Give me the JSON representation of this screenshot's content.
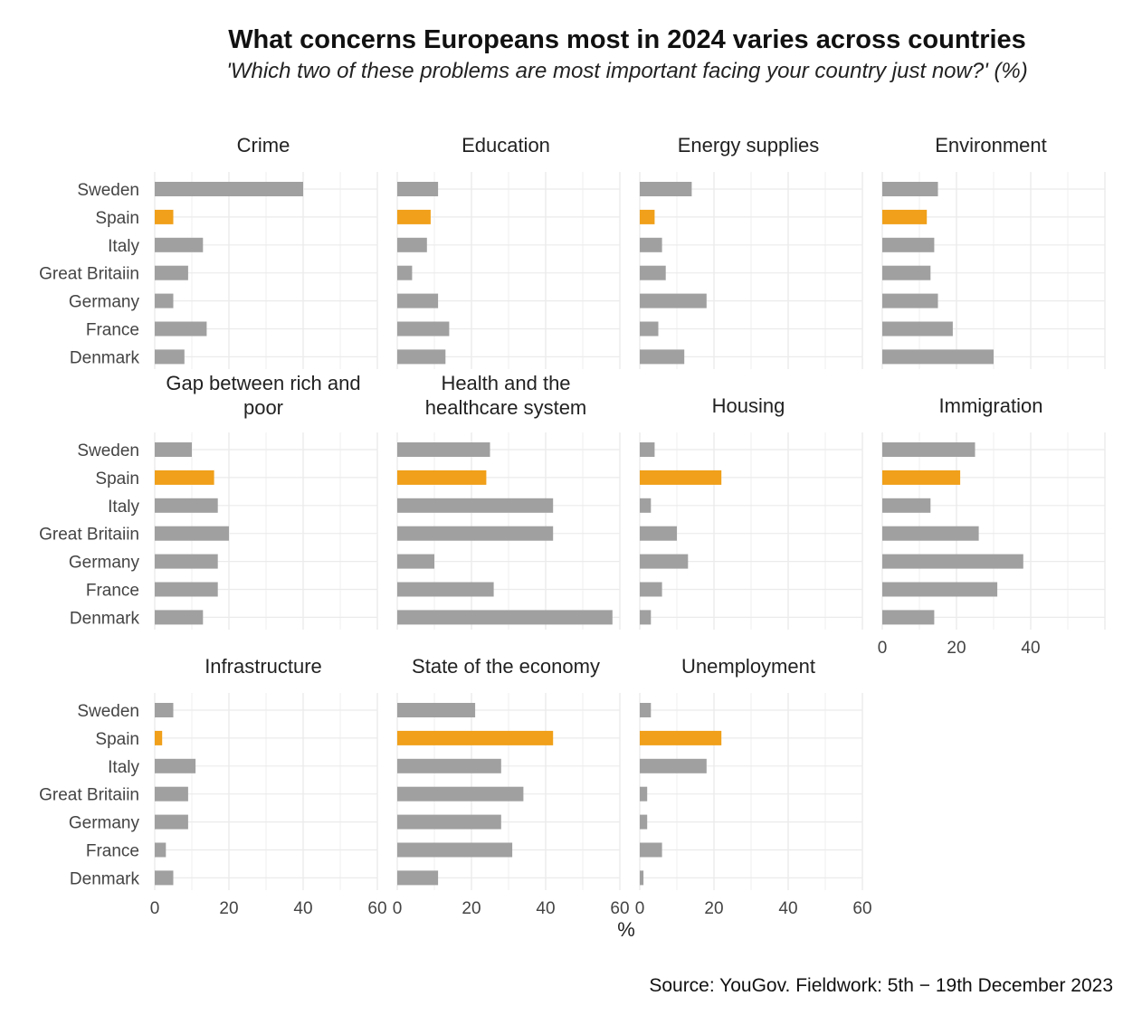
{
  "header": {
    "title": "What concerns Europeans most in 2024 varies across countries",
    "subtitle": "'Which two of these problems are most important facing your country just now?' (%)"
  },
  "footer": {
    "source": "Source: YouGov. Fieldwork: 5th − 19th December 2023"
  },
  "colors": {
    "highlight": "#f0a01a",
    "bar": "#a0a0a0",
    "grid": "#ebebeb"
  },
  "chart_data": {
    "type": "bar",
    "orientation": "horizontal",
    "facet_layout": "4 columns x 3 rows",
    "highlight_category": "Spain",
    "categories": [
      "Sweden",
      "Spain",
      "Italy",
      "Great Britaiin",
      "Germany",
      "France",
      "Denmark"
    ],
    "xlabel": "%",
    "xlim": [
      0,
      60
    ],
    "xticks": [
      0,
      20,
      40,
      60
    ],
    "grid": true,
    "panels": [
      {
        "title": [
          "Crime"
        ],
        "values": [
          40,
          5,
          13,
          9,
          5,
          14,
          8
        ]
      },
      {
        "title": [
          "Education"
        ],
        "values": [
          11,
          9,
          8,
          4,
          11,
          14,
          13
        ]
      },
      {
        "title": [
          "Energy supplies"
        ],
        "values": [
          14,
          4,
          6,
          7,
          18,
          5,
          12
        ]
      },
      {
        "title": [
          "Environment"
        ],
        "values": [
          15,
          12,
          14,
          13,
          15,
          19,
          30
        ]
      },
      {
        "title": [
          "Gap between rich and",
          "poor"
        ],
        "values": [
          10,
          16,
          17,
          20,
          17,
          17,
          13
        ]
      },
      {
        "title": [
          "Health and the",
          "healthcare system"
        ],
        "values": [
          25,
          24,
          42,
          42,
          10,
          26,
          58
        ]
      },
      {
        "title": [
          "Housing"
        ],
        "values": [
          4,
          22,
          3,
          10,
          13,
          6,
          3
        ]
      },
      {
        "title": [
          "Immigration"
        ],
        "values": [
          25,
          21,
          13,
          26,
          38,
          31,
          14
        ]
      },
      {
        "title": [
          "Infrastructure"
        ],
        "values": [
          5,
          2,
          11,
          9,
          9,
          3,
          5
        ]
      },
      {
        "title": [
          "State of the economy"
        ],
        "values": [
          21,
          42,
          28,
          34,
          28,
          31,
          11
        ]
      },
      {
        "title": [
          "Unemployment"
        ],
        "values": [
          3,
          22,
          18,
          2,
          2,
          6,
          1
        ]
      }
    ]
  }
}
